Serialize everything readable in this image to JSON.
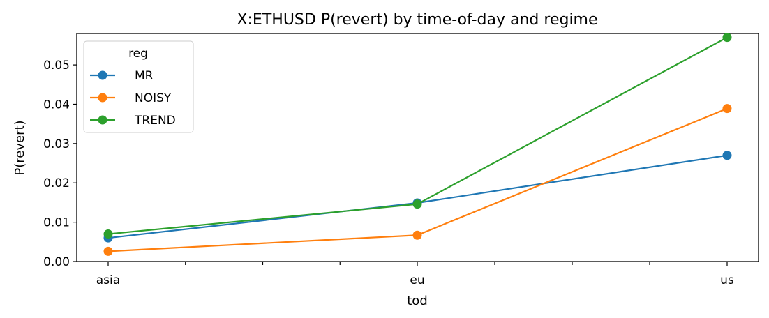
{
  "chart_data": {
    "type": "line",
    "title": "X:ETHUSD P(revert) by time-of-day and regime",
    "xlabel": "tod",
    "ylabel": "P(revert)",
    "categories": [
      "asia",
      "eu",
      "us"
    ],
    "ylim": [
      0.0,
      0.058
    ],
    "yticks": [
      0.0,
      0.01,
      0.02,
      0.03,
      0.04,
      0.05
    ],
    "ytick_labels": [
      "0.00",
      "0.01",
      "0.02",
      "0.03",
      "0.04",
      "0.05"
    ],
    "minor_xticks_between_categories": 3,
    "grid": false,
    "legend": {
      "title": "reg",
      "placement": "top-left"
    },
    "series": [
      {
        "name": "MR",
        "color": "#1f77b4",
        "values": [
          0.006,
          0.0149,
          0.027
        ]
      },
      {
        "name": "NOISY",
        "color": "#ff7f0e",
        "values": [
          0.0026,
          0.0067,
          0.0389
        ]
      },
      {
        "name": "TREND",
        "color": "#2ca02c",
        "values": [
          0.007,
          0.0146,
          0.057
        ]
      }
    ]
  }
}
